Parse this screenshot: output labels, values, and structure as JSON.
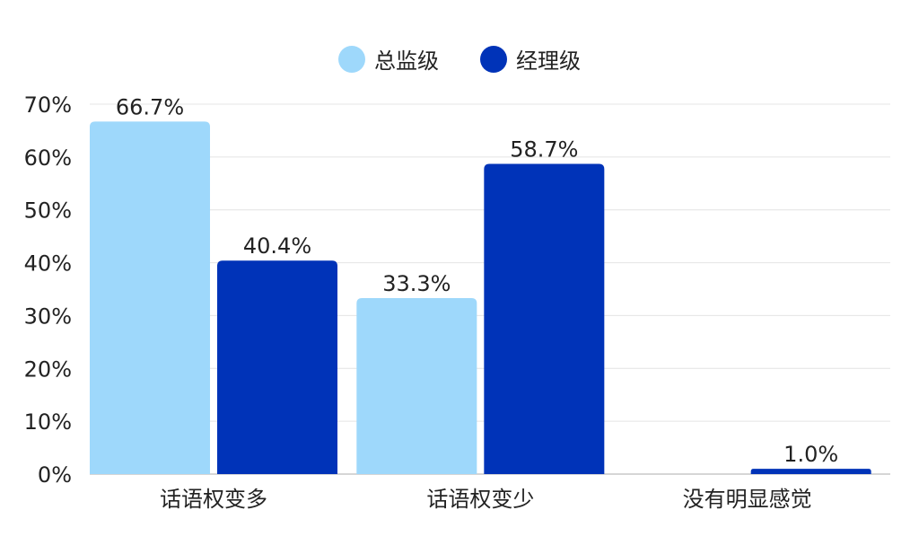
{
  "chart_data": {
    "type": "bar",
    "categories": [
      "话语权变多",
      "话语权变少",
      "没有明显感觉"
    ],
    "series": [
      {
        "name": "总监级",
        "color": "#9ed8fb",
        "values": [
          66.7,
          33.3,
          0
        ],
        "labels": [
          "66.7%",
          "33.3%",
          ""
        ]
      },
      {
        "name": "经理级",
        "color": "#0033b8",
        "values": [
          40.4,
          58.7,
          1.0
        ],
        "labels": [
          "40.4%",
          "58.7%",
          "1.0%"
        ]
      }
    ],
    "yticks": [
      "0%",
      "10%",
      "20%",
      "30%",
      "40%",
      "50%",
      "60%",
      "70%"
    ],
    "ylim": [
      0,
      70
    ],
    "legend_position": "top-center",
    "grid": true
  }
}
